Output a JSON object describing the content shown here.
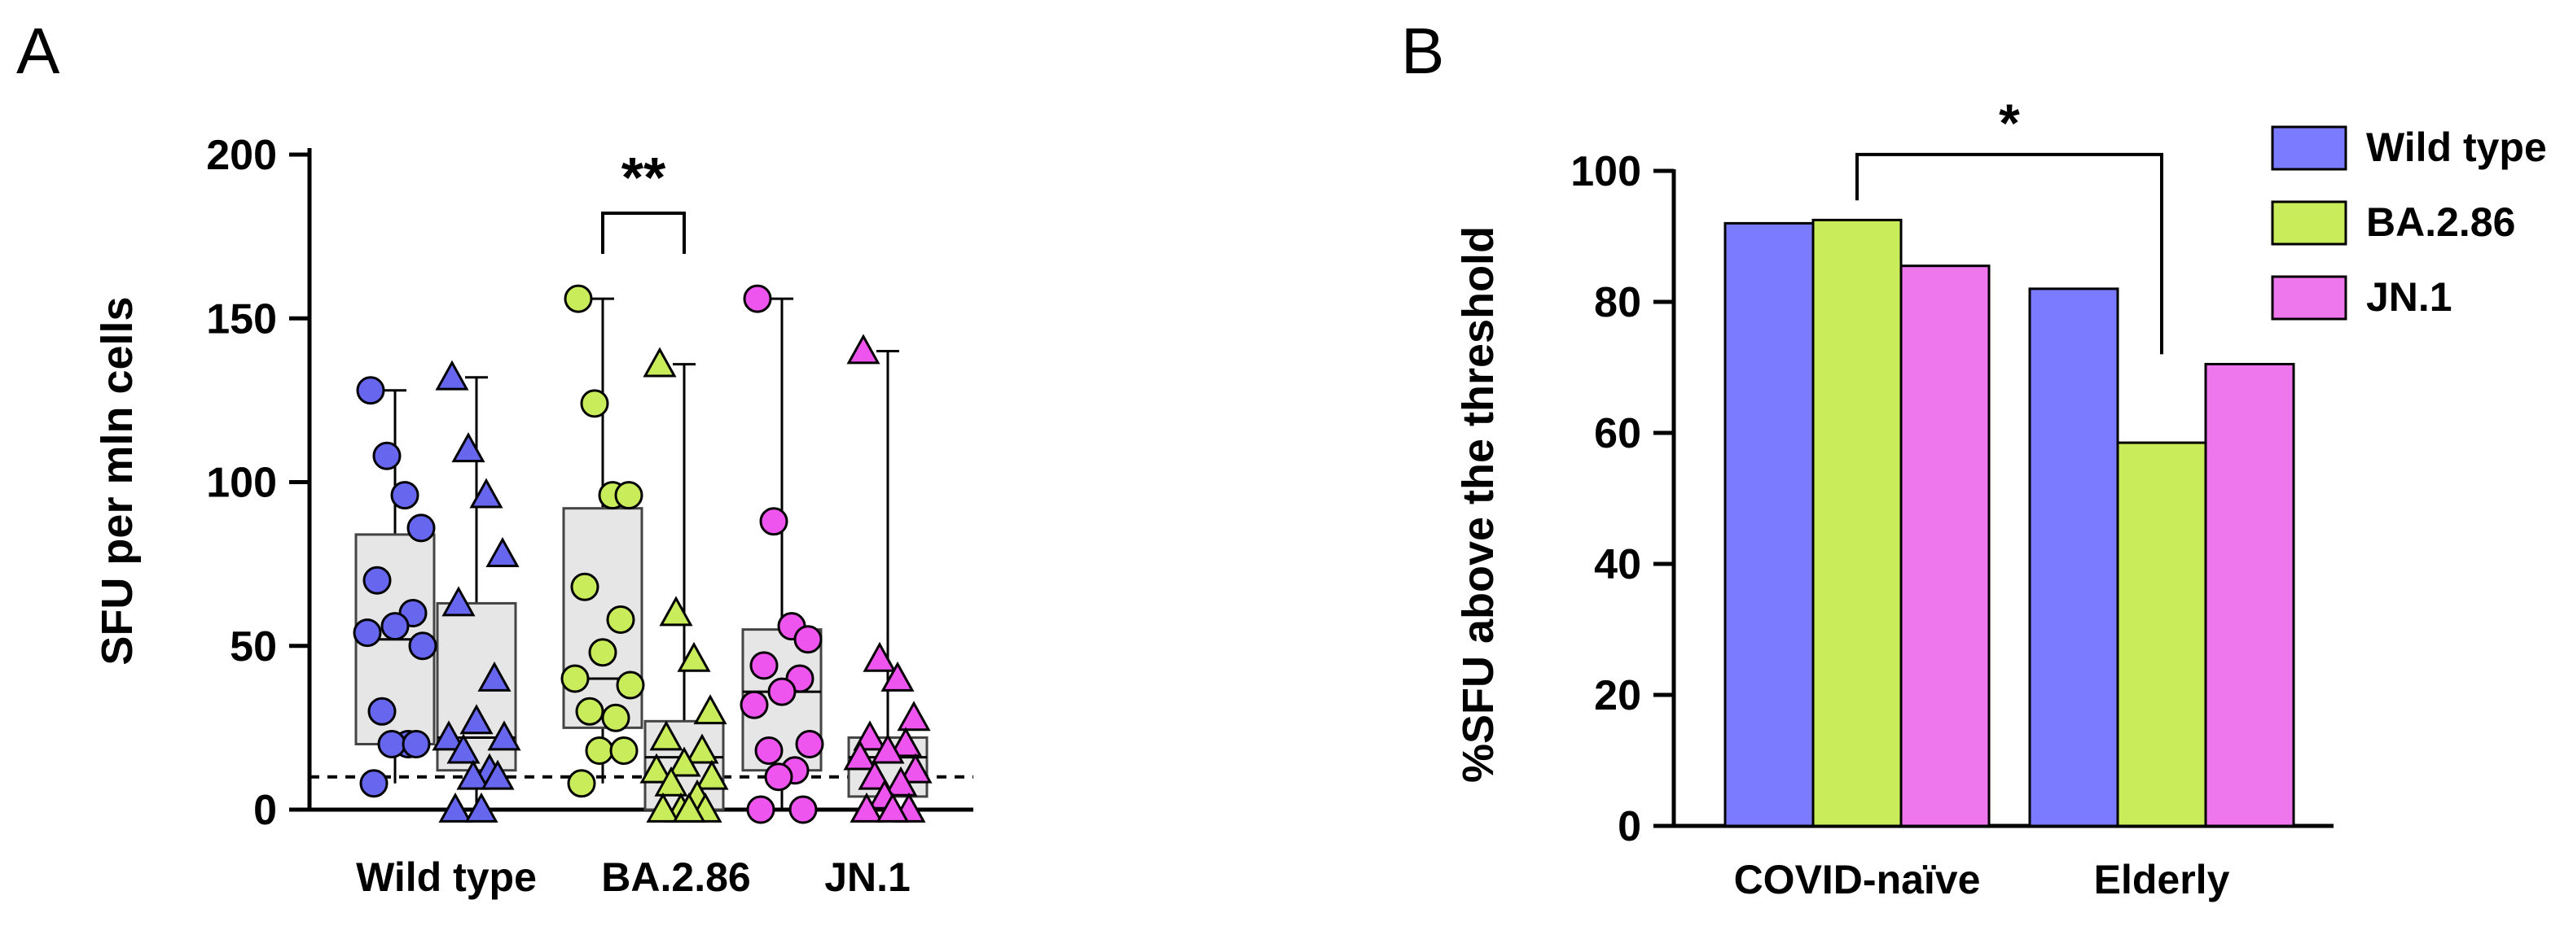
{
  "chart_data": [
    {
      "panel_label": "A",
      "type": "box-scatter",
      "ylabel": "SFU per mln cells",
      "ylim": [
        0,
        200
      ],
      "yticks": [
        "0",
        "50",
        "100",
        "150",
        "200"
      ],
      "threshold": 10,
      "categories": [
        "Wild type",
        "BA.2.86",
        "JN.1"
      ],
      "significance": {
        "label": "**",
        "between": [
          "BA.2.86 circles",
          "BA.2.86 triangles"
        ]
      },
      "groups": [
        {
          "category": "Wild type",
          "marker": "circle",
          "color": "#6666ee",
          "box": {
            "q1": 20,
            "median": 52,
            "q3": 84,
            "min": 8,
            "max": 128
          },
          "values": [
            128,
            108,
            96,
            86,
            70,
            60,
            56,
            54,
            50,
            30,
            20,
            20,
            20,
            8
          ]
        },
        {
          "category": "Wild type",
          "marker": "triangle",
          "color": "#6666ee",
          "box": {
            "q1": 12,
            "median": 22,
            "q3": 63,
            "min": 0,
            "max": 132
          },
          "values": [
            132,
            110,
            96,
            78,
            63,
            40,
            27,
            22,
            22,
            18,
            12,
            10,
            10,
            0,
            0
          ]
        },
        {
          "category": "BA.2.86",
          "marker": "circle",
          "color": "#c8ec5a",
          "box": {
            "q1": 25,
            "median": 40,
            "q3": 92,
            "min": 8,
            "max": 156
          },
          "values": [
            156,
            124,
            96,
            96,
            68,
            58,
            48,
            40,
            38,
            30,
            28,
            18,
            18,
            8
          ]
        },
        {
          "category": "BA.2.86",
          "marker": "triangle",
          "color": "#c8ec5a",
          "box": {
            "q1": 0,
            "median": 16,
            "q3": 27,
            "min": 0,
            "max": 136
          },
          "values": [
            136,
            60,
            46,
            30,
            22,
            18,
            14,
            12,
            10,
            8,
            4,
            0,
            0,
            0,
            0
          ]
        },
        {
          "category": "JN.1",
          "marker": "circle",
          "color": "#ee55ee",
          "box": {
            "q1": 12,
            "median": 36,
            "q3": 55,
            "min": 0,
            "max": 156
          },
          "values": [
            156,
            88,
            56,
            52,
            44,
            40,
            36,
            32,
            20,
            18,
            12,
            10,
            0,
            0
          ]
        },
        {
          "category": "JN.1",
          "marker": "triangle",
          "color": "#ee55ee",
          "box": {
            "q1": 4,
            "median": 16,
            "q3": 22,
            "min": 0,
            "max": 140
          },
          "values": [
            140,
            46,
            40,
            28,
            22,
            20,
            18,
            16,
            12,
            10,
            8,
            4,
            0,
            0,
            0
          ]
        }
      ]
    },
    {
      "panel_label": "B",
      "type": "bar",
      "ylabel": "%SFU above the threshold",
      "ylim": [
        0,
        100
      ],
      "yticks": [
        "0",
        "20",
        "40",
        "60",
        "80",
        "100"
      ],
      "categories": [
        "COVID-naïve",
        "Elderly"
      ],
      "series": [
        {
          "name": "Wild type",
          "color": "#7b7bff",
          "values": [
            92,
            82
          ]
        },
        {
          "name": "BA.2.86",
          "color": "#c8ec5a",
          "values": [
            92.5,
            58.5
          ]
        },
        {
          "name": "JN.1",
          "color": "#ee77ee",
          "values": [
            85.5,
            70.5
          ]
        }
      ],
      "significance": {
        "label": "*",
        "between": [
          "COVID-naïve BA.2.86",
          "Elderly BA.2.86"
        ]
      },
      "legend": "top-right"
    }
  ]
}
